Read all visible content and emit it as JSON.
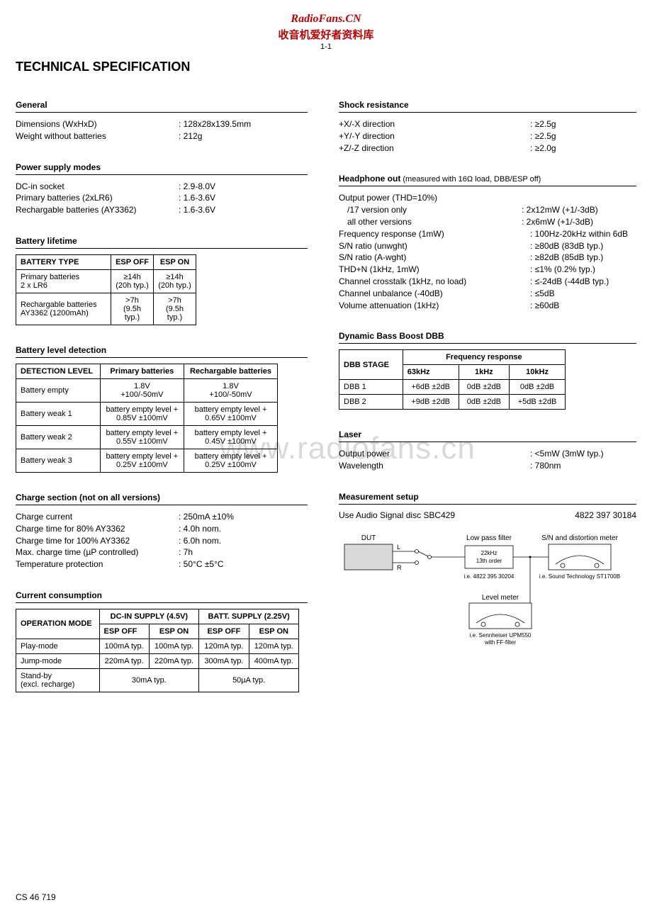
{
  "header": {
    "brand_en": "RadioFans.CN",
    "brand_cn": "收音机爱好者资料库",
    "page_number": "1-1"
  },
  "title": "TECHNICAL SPECIFICATION",
  "watermark": "www.radiofans.cn",
  "footer": "CS 46 719",
  "left": {
    "general": {
      "heading": "General",
      "rows": [
        {
          "label": "Dimensions (WxHxD)",
          "value": ": 128x28x139.5mm"
        },
        {
          "label": "Weight without batteries",
          "value": ": 212g"
        }
      ]
    },
    "power_modes": {
      "heading": "Power supply modes",
      "rows": [
        {
          "label": "DC-in socket",
          "value": ": 2.9-8.0V"
        },
        {
          "label": "Primary batteries (2xLR6)",
          "value": ": 1.6-3.6V"
        },
        {
          "label": "Rechargable batteries (AY3362)",
          "value": ": 1.6-3.6V"
        }
      ]
    },
    "battery_life": {
      "heading": "Battery lifetime",
      "columns": [
        "BATTERY TYPE",
        "ESP OFF",
        "ESP ON"
      ],
      "rows": [
        {
          "type": "Primary batteries\n2 x LR6",
          "off_a": "≥14h",
          "off_b": "(20h typ.)",
          "on_a": "≥14h",
          "on_b": "(20h typ.)"
        },
        {
          "type": "Rechargable batteries\nAY3362 (1200mAh)",
          "off_a": ">7h",
          "off_b": "(9.5h typ.)",
          "on_a": ">7h",
          "on_b": "(9.5h typ.)"
        }
      ]
    },
    "battery_level": {
      "heading": "Battery level detection",
      "columns": [
        "DETECTION LEVEL",
        "Primary batteries",
        "Rechargable batteries"
      ],
      "rows": [
        {
          "level": "Battery empty",
          "p_a": "1.8V",
          "p_b": "+100/-50mV",
          "r_a": "1.8V",
          "r_b": "+100/-50mV"
        },
        {
          "level": "Battery weak 1",
          "p_a": "battery empty level +",
          "p_b": "0.85V ±100mV",
          "r_a": "battery empty level +",
          "r_b": "0.65V ±100mV"
        },
        {
          "level": "Battery weak 2",
          "p_a": "battery empty level +",
          "p_b": "0.55V ±100mV",
          "r_a": "battery empty level +",
          "r_b": "0.45V ±100mV"
        },
        {
          "level": "Battery weak 3",
          "p_a": "battery empty level +",
          "p_b": "0.25V ±100mV",
          "r_a": "battery empty level +",
          "r_b": "0.25V ±100mV"
        }
      ]
    },
    "charge": {
      "heading": "Charge section (not on all versions)",
      "rows": [
        {
          "label": "Charge current",
          "value": ": 250mA ±10%"
        },
        {
          "label": "Charge time for 80% AY3362",
          "value": ": 4.0h nom."
        },
        {
          "label": "Charge time for 100% AY3362",
          "value": ": 6.0h nom."
        },
        {
          "label": "Max. charge time (µP controlled)",
          "value": ": 7h"
        },
        {
          "label": "Temperature protection",
          "value": ": 50°C ±5°C"
        }
      ]
    },
    "current": {
      "heading": "Current consumption",
      "col_mode": "OPERATION MODE",
      "col_dc": "DC-IN SUPPLY (4.5V)",
      "col_batt": "BATT. SUPPLY (2.25V)",
      "sub_off": "ESP OFF",
      "sub_on": "ESP ON",
      "rows": [
        {
          "mode": "Play-mode",
          "dc_off": "100mA typ.",
          "dc_on": "100mA typ.",
          "b_off": "120mA typ.",
          "b_on": "120mA typ."
        },
        {
          "mode": "Jump-mode",
          "dc_off": "220mA typ.",
          "dc_on": "220mA typ.",
          "b_off": "300mA typ.",
          "b_on": "400mA typ."
        }
      ],
      "standby": {
        "mode": "Stand-by\n(excl. recharge)",
        "dc": "30mA typ.",
        "batt": "50µA typ."
      }
    }
  },
  "right": {
    "shock": {
      "heading": "Shock resistance",
      "rows": [
        {
          "label": "+X/-X direction",
          "value": ": ≥2.5g"
        },
        {
          "label": "+Y/-Y direction",
          "value": ": ≥2.5g"
        },
        {
          "label": "+Z/-Z direction",
          "value": ": ≥2.0g"
        }
      ]
    },
    "headphone": {
      "heading": "Headphone out",
      "heading_note": " (measured with 16Ω load, DBB/ESP off)",
      "rows": [
        {
          "label": "Output power (THD=10%)",
          "value": ""
        },
        {
          "label": "/17 version only",
          "value": ": 2x12mW (+1/-3dB)",
          "indent": true
        },
        {
          "label": "all other versions",
          "value": ": 2x6mW (+1/-3dB)",
          "indent": true
        },
        {
          "label": "Frequency response (1mW)",
          "value": ": 100Hz-20kHz within 6dB"
        },
        {
          "label": "S/N ratio (unwght)",
          "value": ": ≥80dB (83dB typ.)"
        },
        {
          "label": "S/N ratio (A-wght)",
          "value": ": ≥82dB (85dB typ.)"
        },
        {
          "label": "THD+N (1kHz, 1mW)",
          "value": ": ≤1% (0.2% typ.)"
        },
        {
          "label": "Channel crosstalk (1kHz, no load)",
          "value": ": ≤-24dB (-44dB typ.)"
        },
        {
          "label": "Channel unbalance (-40dB)",
          "value": ": ≤5dB"
        },
        {
          "label": "Volume attenuation (1kHz)",
          "value": ": ≥60dB"
        }
      ]
    },
    "dbb": {
      "heading": "Dynamic Bass Boost DBB",
      "col_stage": "DBB STAGE",
      "col_freq": "Frequency response",
      "sub_cols": [
        "63kHz",
        "1kHz",
        "10kHz"
      ],
      "rows": [
        {
          "stage": "DBB 1",
          "v": [
            "+6dB ±2dB",
            "0dB ±2dB",
            "0dB ±2dB"
          ]
        },
        {
          "stage": "DBB 2",
          "v": [
            "+9dB ±2dB",
            "0dB ±2dB",
            "+5dB ±2dB"
          ]
        }
      ]
    },
    "laser": {
      "heading": "Laser",
      "rows": [
        {
          "label": "Output power",
          "value": ": <5mW (3mW typ.)"
        },
        {
          "label": "Wavelength",
          "value": ": 780nm"
        }
      ]
    },
    "meas": {
      "heading": "Measurement setup",
      "text": "Use Audio Signal disc SBC429",
      "part": "4822 397 30184",
      "diagram": {
        "dut": "DUT",
        "l": "L",
        "r": "R",
        "lowpass": "Low pass filter",
        "lp_a": "22kHz",
        "lp_b": "13th order",
        "lp_note": "i.e. 4822 395 30204",
        "sn": "S/N and distortion meter",
        "sn_note": "i.e. Sound Technology ST1700B",
        "level": "Level meter",
        "level_note": "i.e. Sennheiser UPM550\nwith FF-filter"
      }
    }
  }
}
